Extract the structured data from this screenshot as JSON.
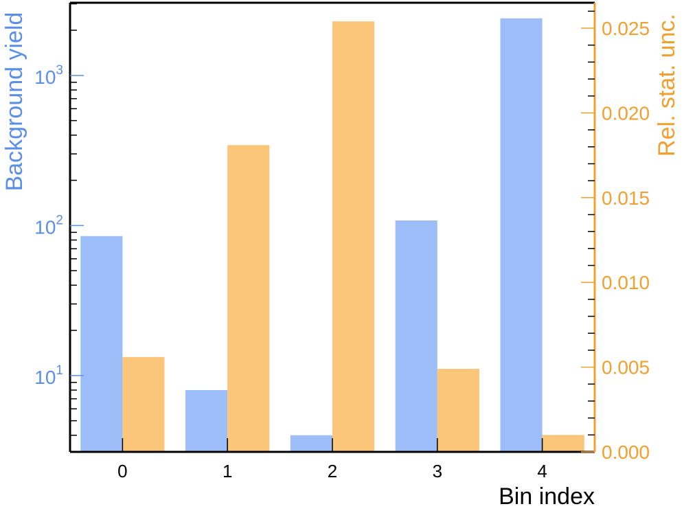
{
  "chart_data": {
    "type": "bar",
    "categories": [
      "0",
      "1",
      "2",
      "3",
      "4"
    ],
    "xlabel": "Bin index",
    "left_axis": {
      "label": "Background yield",
      "scale": "log",
      "range": [
        3.1,
        3050
      ],
      "color": "#5b8ee6",
      "tick_labels": [
        {
          "base": "10",
          "exp": "1",
          "value": 10
        },
        {
          "base": "10",
          "exp": "2",
          "value": 100
        },
        {
          "base": "10",
          "exp": "3",
          "value": 1000
        }
      ]
    },
    "right_axis": {
      "label": "Rel. stat. unc.",
      "scale": "linear",
      "range": [
        0,
        0.0265
      ],
      "color": "#f0a030",
      "tick_labels": [
        "0.000",
        "0.005",
        "0.010",
        "0.015",
        "0.020",
        "0.025"
      ],
      "tick_values": [
        0,
        0.005,
        0.01,
        0.015,
        0.02,
        0.025
      ]
    },
    "series": [
      {
        "axis": "left",
        "color": "#9dbdf9",
        "values": [
          85,
          8,
          4,
          108,
          2400
        ]
      },
      {
        "axis": "right",
        "color": "#fbc57a",
        "values": [
          0.0056,
          0.0181,
          0.0254,
          0.0049,
          0.001
        ]
      }
    ],
    "grid": false
  }
}
